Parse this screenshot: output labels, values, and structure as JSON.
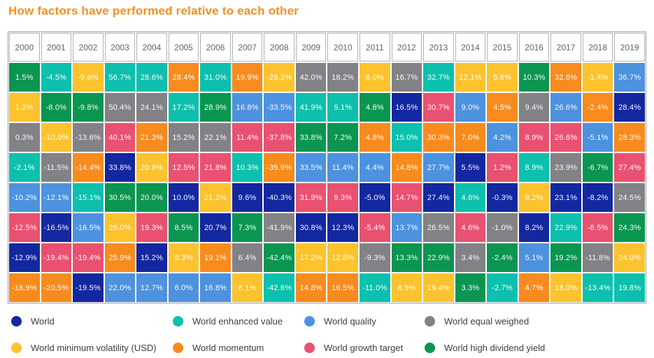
{
  "colors": {
    "title": "#F78E1E",
    "year_text": "#5F6368",
    "legend_text": "#3C4043",
    "grid_border": "#9DA2A8"
  },
  "chart_data": {
    "type": "heatmap",
    "title": "How factors have performed relative to each other",
    "years": [
      "2000",
      "2001",
      "2002",
      "2003",
      "2004",
      "2005",
      "2006",
      "2007",
      "2008",
      "2009",
      "2010",
      "2011",
      "2012",
      "2013",
      "2014",
      "2015",
      "2016",
      "2017",
      "2018",
      "2019"
    ],
    "factors": [
      {
        "id": "world",
        "label": "World",
        "color": "#1328A0"
      },
      {
        "id": "value",
        "label": "World enhanced value",
        "color": "#0CC0AD"
      },
      {
        "id": "quality",
        "label": "World quality",
        "color": "#4D92DE"
      },
      {
        "id": "equal",
        "label": "World equal weighed",
        "color": "#828286"
      },
      {
        "id": "minvol",
        "label": "World minimum volatility (USD)",
        "color": "#FDC32E"
      },
      {
        "id": "momentum",
        "label": "World momentum",
        "color": "#F88B1E"
      },
      {
        "id": "growth",
        "label": "World growth target",
        "color": "#E95170"
      },
      {
        "id": "dividend",
        "label": "World high dividend yield",
        "color": "#0A9551"
      }
    ],
    "legend_order": [
      "world",
      "value",
      "quality",
      "equal",
      "minvol",
      "momentum",
      "growth",
      "dividend"
    ],
    "rows": [
      {
        "values": [
          "1.5%",
          "-4.5%",
          "-9.6%",
          "56.7%",
          "28.6%",
          "28.4%",
          "31.0%",
          "19.9%",
          "-29.2%",
          "42.0%",
          "18.2%",
          "8.0%",
          "16.7%",
          "32.7%",
          "12.1%",
          "5.8%",
          "10.3%",
          "32.6%",
          "-1.4%",
          "36.7%"
        ],
        "factors": [
          "dividend",
          "value",
          "minvol",
          "value",
          "value",
          "momentum",
          "value",
          "momentum",
          "minvol",
          "equal",
          "equal",
          "minvol",
          "equal",
          "value",
          "minvol",
          "minvol",
          "dividend",
          "momentum",
          "minvol",
          "quality"
        ]
      },
      {
        "values": [
          "1.2%",
          "-8.0%",
          "-9.8%",
          "50.4%",
          "24.1%",
          "17.2%",
          "28.9%",
          "16.8%",
          "-33.5%",
          "41.9%",
          "9.1%",
          "4.8%",
          "16.5%",
          "30.7%",
          "9.0%",
          "4.5%",
          "9.4%",
          "26.6%",
          "-2.4%",
          "28.4%"
        ],
        "factors": [
          "minvol",
          "dividend",
          "dividend",
          "equal",
          "equal",
          "value",
          "dividend",
          "quality",
          "quality",
          "value",
          "value",
          "dividend",
          "world",
          "growth",
          "quality",
          "momentum",
          "equal",
          "quality",
          "momentum",
          "world"
        ]
      },
      {
        "values": [
          "0.3%",
          "-10.0%",
          "-13.6%",
          "40.1%",
          "21.3%",
          "15.2%",
          "22.1%",
          "11.4%",
          "-37.8%",
          "33.8%",
          "7.2%",
          "4.8%",
          "15.0%",
          "30.3%",
          "7.0%",
          "4.2%",
          "8.9%",
          "26.6%",
          "-5.1%",
          "28.3%"
        ],
        "factors": [
          "equal",
          "minvol",
          "equal",
          "growth",
          "momentum",
          "equal",
          "equal",
          "growth",
          "growth",
          "dividend",
          "dividend",
          "momentum",
          "value",
          "momentum",
          "momentum",
          "quality",
          "growth",
          "growth",
          "quality",
          "momentum"
        ]
      },
      {
        "values": [
          "-2.1%",
          "-11.5%",
          "-14.4%",
          "33.8%",
          "20.8%",
          "12.5%",
          "21.8%",
          "10.3%",
          "-39.9%",
          "33.5%",
          "11.4%",
          "4.4%",
          "14.8%",
          "27.7%",
          "5.5%",
          "1.2%",
          "8.9%",
          "23.9%",
          "-6.7%",
          "27.4%"
        ],
        "factors": [
          "value",
          "equal",
          "momentum",
          "world",
          "minvol",
          "growth",
          "growth",
          "value",
          "momentum",
          "quality",
          "quality",
          "quality",
          "momentum",
          "quality",
          "world",
          "growth",
          "value",
          "equal",
          "dividend",
          "growth"
        ]
      },
      {
        "values": [
          "-10.2%",
          "-12.1%",
          "-15.1%",
          "30.5%",
          "20.0%",
          "10.0%",
          "21.2%",
          "9.6%",
          "-40.3%",
          "31.9%",
          "9.3%",
          "-5.0%",
          "14.7%",
          "27.4%",
          "4.6%",
          "-0.3%",
          "8.2%",
          "23.1%",
          "-8.2%",
          "24.5%"
        ],
        "factors": [
          "quality",
          "quality",
          "value",
          "dividend",
          "dividend",
          "world",
          "minvol",
          "world",
          "world",
          "growth",
          "growth",
          "world",
          "growth",
          "world",
          "value",
          "world",
          "minvol",
          "world",
          "world",
          "equal"
        ]
      },
      {
        "values": [
          "-12.5%",
          "-16.5%",
          "-16.5%",
          "26.0%",
          "19.3%",
          "8.5%",
          "20.7%",
          "7.3%",
          "-41.9%",
          "30.8%",
          "12.3%",
          "-5.4%",
          "13.7%",
          "26.5%",
          "4.6%",
          "-1.0%",
          "8.2%",
          "22.9%",
          "-8.5%",
          "24.3%"
        ],
        "factors": [
          "growth",
          "world",
          "quality",
          "minvol",
          "growth",
          "dividend",
          "world",
          "dividend",
          "equal",
          "world",
          "world",
          "growth",
          "quality",
          "equal",
          "growth",
          "equal",
          "world",
          "value",
          "growth",
          "dividend"
        ]
      },
      {
        "values": [
          "-12.9%",
          "-19.4%",
          "-19.4%",
          "25.9%",
          "15.2%",
          "8.3%",
          "19.1%",
          "6.4%",
          "-42.4%",
          "17.2%",
          "12.8%",
          "-9.3%",
          "13.3%",
          "22.9%",
          "3.4%",
          "-2.4%",
          "5.1%",
          "19.2%",
          "-11.8%",
          "24.0%"
        ],
        "factors": [
          "world",
          "growth",
          "growth",
          "momentum",
          "world",
          "minvol",
          "momentum",
          "equal",
          "dividend",
          "minvol",
          "minvol",
          "equal",
          "dividend",
          "dividend",
          "equal",
          "dividend",
          "quality",
          "dividend",
          "equal",
          "minvol"
        ]
      },
      {
        "values": [
          "-18.9%",
          "-20.5%",
          "-19.5%",
          "22.0%",
          "12.7%",
          "6.0%",
          "16.8%",
          "6.1%",
          "-42.6%",
          "14.8%",
          "16.5%",
          "-11.0%",
          "8.9%",
          "19.4%",
          "3.3%",
          "-2.7%",
          "4.7%",
          "18.0%",
          "-13.4%",
          "19.8%"
        ],
        "factors": [
          "momentum",
          "momentum",
          "world",
          "quality",
          "quality",
          "quality",
          "quality",
          "minvol",
          "value",
          "momentum",
          "momentum",
          "value",
          "minvol",
          "minvol",
          "dividend",
          "value",
          "momentum",
          "minvol",
          "value",
          "value"
        ]
      }
    ]
  }
}
